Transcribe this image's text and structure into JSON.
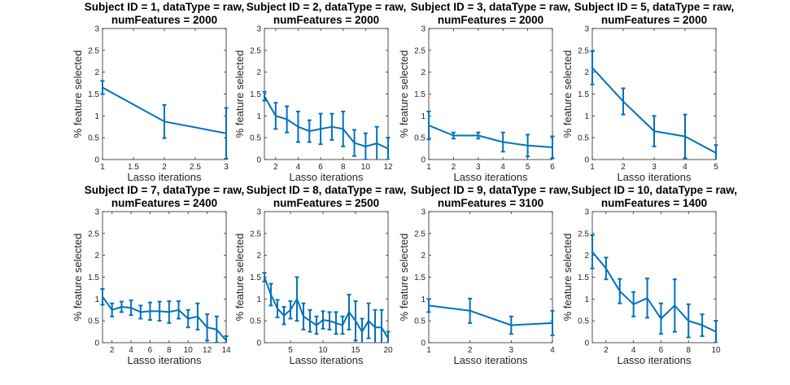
{
  "chart_data": [
    {
      "type": "line",
      "title_lines": [
        "Subject ID = 1, dataType = raw,",
        "numFeatures = 2000"
      ],
      "xlabel": "Lasso iterations",
      "ylabel": "% feature selected",
      "xlim": [
        1,
        3
      ],
      "ylim": [
        0,
        3
      ],
      "xticks": [
        "1",
        "1.5",
        "2",
        "2.5",
        "3"
      ],
      "yticks": [
        "0",
        "0.5",
        "1",
        "1.5",
        "2",
        "2.5",
        "3"
      ],
      "color": "#0072BD",
      "series": [
        {
          "x": [
            1,
            2,
            3
          ],
          "y": [
            1.65,
            0.87,
            0.6
          ],
          "err": [
            0.15,
            0.38,
            0.58
          ]
        }
      ]
    },
    {
      "type": "line",
      "title_lines": [
        "Subject ID = 2, dataType = raw,",
        "numFeatures = 2000"
      ],
      "xlabel": "Lasso iterations",
      "ylabel": "% feature selected",
      "xlim": [
        1,
        12
      ],
      "ylim": [
        0,
        3
      ],
      "xticks": [
        "2",
        "4",
        "6",
        "8",
        "10",
        "12"
      ],
      "yticks": [
        "0",
        "0.5",
        "1",
        "1.5",
        "2",
        "2.5",
        "3"
      ],
      "color": "#0072BD",
      "series": [
        {
          "x": [
            1,
            2,
            3,
            4,
            5,
            6,
            7,
            8,
            9,
            10,
            11,
            12
          ],
          "y": [
            1.45,
            1.0,
            0.92,
            0.75,
            0.65,
            0.7,
            0.75,
            0.7,
            0.38,
            0.3,
            0.37,
            0.25
          ],
          "err": [
            0.1,
            0.3,
            0.3,
            0.35,
            0.25,
            0.35,
            0.3,
            0.4,
            0.3,
            0.3,
            0.38,
            0.25
          ]
        }
      ]
    },
    {
      "type": "line",
      "title_lines": [
        "Subject ID = 3, dataType = raw,",
        "numFeatures = 2000"
      ],
      "xlabel": "Lasso iterations",
      "ylabel": "% feature selected",
      "xlim": [
        1,
        6
      ],
      "ylim": [
        0,
        3
      ],
      "xticks": [
        "1",
        "2",
        "3",
        "4",
        "5",
        "6"
      ],
      "yticks": [
        "0",
        "0.5",
        "1",
        "1.5",
        "2",
        "2.5",
        "3"
      ],
      "color": "#0072BD",
      "series": [
        {
          "x": [
            1,
            2,
            3,
            4,
            5,
            6
          ],
          "y": [
            0.78,
            0.55,
            0.55,
            0.4,
            0.32,
            0.28
          ],
          "err": [
            0.32,
            0.07,
            0.07,
            0.22,
            0.25,
            0.25
          ]
        }
      ]
    },
    {
      "type": "line",
      "title_lines": [
        "Subject ID = 5, dataType = raw,",
        "numFeatures = 2000"
      ],
      "xlabel": "Lasso iterations",
      "ylabel": "% feature selected",
      "xlim": [
        1,
        5
      ],
      "ylim": [
        0,
        3
      ],
      "xticks": [
        "1",
        "2",
        "3",
        "4",
        "5"
      ],
      "yticks": [
        "0",
        "0.5",
        "1",
        "1.5",
        "2",
        "2.5",
        "3"
      ],
      "color": "#0072BD",
      "series": [
        {
          "x": [
            1,
            2,
            3,
            4,
            5
          ],
          "y": [
            2.1,
            1.33,
            0.65,
            0.53,
            0.15
          ],
          "err": [
            0.38,
            0.3,
            0.35,
            0.5,
            0.18
          ]
        }
      ]
    },
    {
      "type": "line",
      "title_lines": [
        "Subject ID = 7, dataType = raw,",
        "numFeatures = 2400"
      ],
      "xlabel": "Lasso iterations",
      "ylabel": "% feature selected",
      "xlim": [
        1,
        14
      ],
      "ylim": [
        0,
        3
      ],
      "xticks": [
        "2",
        "4",
        "6",
        "8",
        "10",
        "12",
        "14"
      ],
      "yticks": [
        "0",
        "0.5",
        "1",
        "1.5",
        "2",
        "2.5",
        "3"
      ],
      "color": "#0072BD",
      "series": [
        {
          "x": [
            1,
            2,
            3,
            4,
            5,
            6,
            7,
            8,
            9,
            10,
            11,
            12,
            13,
            14
          ],
          "y": [
            1.05,
            0.75,
            0.82,
            0.8,
            0.7,
            0.72,
            0.72,
            0.7,
            0.75,
            0.55,
            0.6,
            0.35,
            0.3,
            0.05
          ],
          "err": [
            0.18,
            0.15,
            0.12,
            0.17,
            0.15,
            0.2,
            0.22,
            0.25,
            0.2,
            0.2,
            0.3,
            0.3,
            0.3,
            0.1
          ]
        }
      ]
    },
    {
      "type": "line",
      "title_lines": [
        "Subject ID = 8, dataType = raw,",
        "numFeatures = 2500"
      ],
      "xlabel": "Lasso iterations",
      "ylabel": "% feature selected",
      "xlim": [
        1,
        20
      ],
      "ylim": [
        0,
        3
      ],
      "xticks": [
        "5",
        "10",
        "15",
        "20"
      ],
      "yticks": [
        "0",
        "0.5",
        "1",
        "1.5",
        "2",
        "2.5",
        "3"
      ],
      "color": "#0072BD",
      "series": [
        {
          "x": [
            1,
            2,
            3,
            4,
            5,
            6,
            7,
            8,
            9,
            10,
            11,
            12,
            13,
            14,
            15,
            16,
            17,
            18,
            19,
            20
          ],
          "y": [
            1.5,
            1.1,
            0.78,
            0.62,
            0.75,
            1.0,
            0.6,
            0.5,
            0.4,
            0.52,
            0.5,
            0.45,
            0.4,
            0.7,
            0.5,
            0.25,
            0.5,
            0.35,
            0.35,
            0.1
          ],
          "err": [
            0.1,
            0.25,
            0.2,
            0.2,
            0.2,
            0.5,
            0.3,
            0.25,
            0.2,
            0.2,
            0.2,
            0.25,
            0.2,
            0.4,
            0.45,
            0.3,
            0.4,
            0.4,
            0.4,
            0.15
          ]
        }
      ]
    },
    {
      "type": "line",
      "title_lines": [
        "Subject ID = 9, dataType = raw,",
        "numFeatures = 3100"
      ],
      "xlabel": "Lasso iterations",
      "ylabel": "% feature selected",
      "xlim": [
        1,
        4
      ],
      "ylim": [
        0,
        3
      ],
      "xticks": [
        "1",
        "2",
        "3",
        "4"
      ],
      "yticks": [
        "0",
        "0.5",
        "1",
        "1.5",
        "2",
        "2.5",
        "3"
      ],
      "color": "#0072BD",
      "series": [
        {
          "x": [
            1,
            2,
            3,
            4
          ],
          "y": [
            0.85,
            0.73,
            0.4,
            0.45
          ],
          "err": [
            0.15,
            0.28,
            0.2,
            0.28
          ]
        }
      ]
    },
    {
      "type": "line",
      "title_lines": [
        "Subject ID = 10, dataType = raw,",
        "numFeatures = 1400"
      ],
      "xlabel": "Lasso iterations",
      "ylabel": "% feature selected",
      "xlim": [
        1,
        10
      ],
      "ylim": [
        0,
        3
      ],
      "xticks": [
        "2",
        "4",
        "6",
        "8",
        "10"
      ],
      "yticks": [
        "0",
        "0.5",
        "1",
        "1.5",
        "2",
        "2.5",
        "3"
      ],
      "color": "#0072BD",
      "series": [
        {
          "x": [
            1,
            2,
            3,
            4,
            5,
            6,
            7,
            8,
            9,
            10
          ],
          "y": [
            2.08,
            1.7,
            1.18,
            0.88,
            1.02,
            0.55,
            0.85,
            0.5,
            0.4,
            0.25
          ],
          "err": [
            0.38,
            0.25,
            0.28,
            0.28,
            0.45,
            0.35,
            0.6,
            0.38,
            0.25,
            0.25
          ]
        }
      ]
    }
  ]
}
